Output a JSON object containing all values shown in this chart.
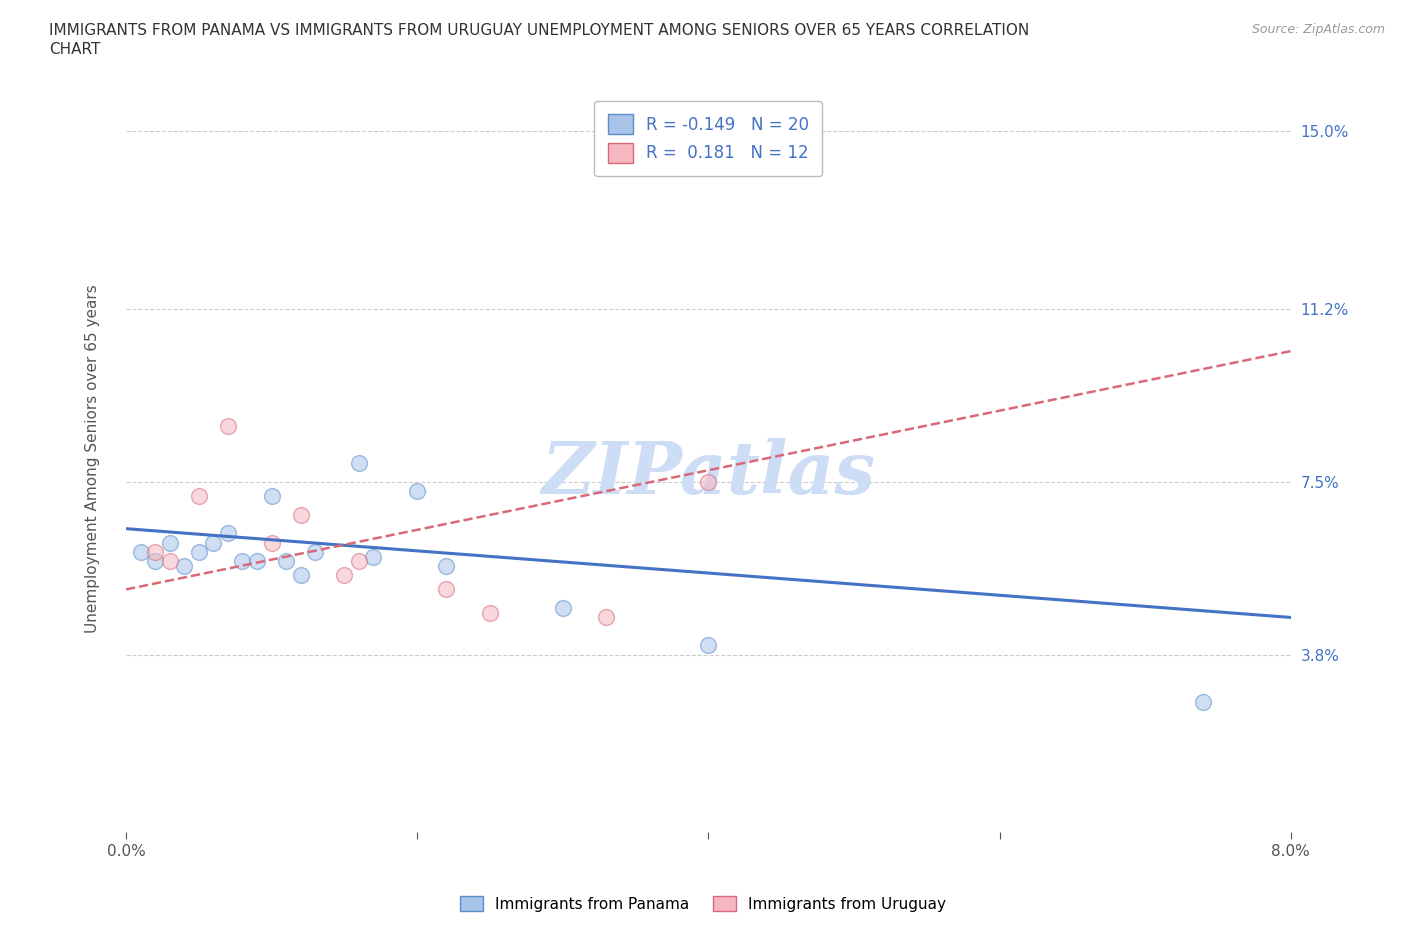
{
  "title_line1": "IMMIGRANTS FROM PANAMA VS IMMIGRANTS FROM URUGUAY UNEMPLOYMENT AMONG SENIORS OVER 65 YEARS CORRELATION",
  "title_line2": "CHART",
  "source": "Source: ZipAtlas.com",
  "ylabel": "Unemployment Among Seniors over 65 years",
  "xlim": [
    0.0,
    0.08
  ],
  "ylim": [
    0.0,
    0.16
  ],
  "xticks": [
    0.0,
    0.02,
    0.04,
    0.06,
    0.08
  ],
  "xticklabels": [
    "0.0%",
    "",
    "",
    "",
    "8.0%"
  ],
  "ytick_positions": [
    0.038,
    0.075,
    0.112,
    0.15
  ],
  "ytick_labels": [
    "3.8%",
    "7.5%",
    "11.2%",
    "15.0%"
  ],
  "panama_color": "#a8c4e8",
  "panama_edge_color": "#5b8ec9",
  "uruguay_color": "#f5b8c2",
  "uruguay_edge_color": "#d96878",
  "panama_r": -0.149,
  "panama_n": 20,
  "uruguay_r": 0.181,
  "uruguay_n": 12,
  "trend_panama_color": "#4472c4",
  "trend_uruguay_color": "#d96878",
  "panama_scatter_x": [
    0.001,
    0.002,
    0.003,
    0.004,
    0.005,
    0.006,
    0.007,
    0.008,
    0.009,
    0.01,
    0.011,
    0.012,
    0.013,
    0.016,
    0.017,
    0.02,
    0.022,
    0.03,
    0.04,
    0.074
  ],
  "panama_scatter_y": [
    0.06,
    0.058,
    0.062,
    0.057,
    0.06,
    0.062,
    0.064,
    0.058,
    0.058,
    0.072,
    0.058,
    0.055,
    0.06,
    0.079,
    0.059,
    0.073,
    0.057,
    0.048,
    0.04,
    0.028
  ],
  "uruguay_scatter_x": [
    0.002,
    0.003,
    0.005,
    0.007,
    0.01,
    0.012,
    0.015,
    0.016,
    0.022,
    0.025,
    0.033,
    0.04
  ],
  "uruguay_scatter_y": [
    0.06,
    0.058,
    0.072,
    0.087,
    0.062,
    0.068,
    0.055,
    0.058,
    0.052,
    0.047,
    0.046,
    0.075
  ],
  "scatter_size": 130,
  "alpha": 0.55,
  "grid_color": "#cccccc",
  "background_color": "#ffffff",
  "watermark": "ZIPatlas",
  "watermark_color": "#ccddf5",
  "watermark_fontsize": 52
}
